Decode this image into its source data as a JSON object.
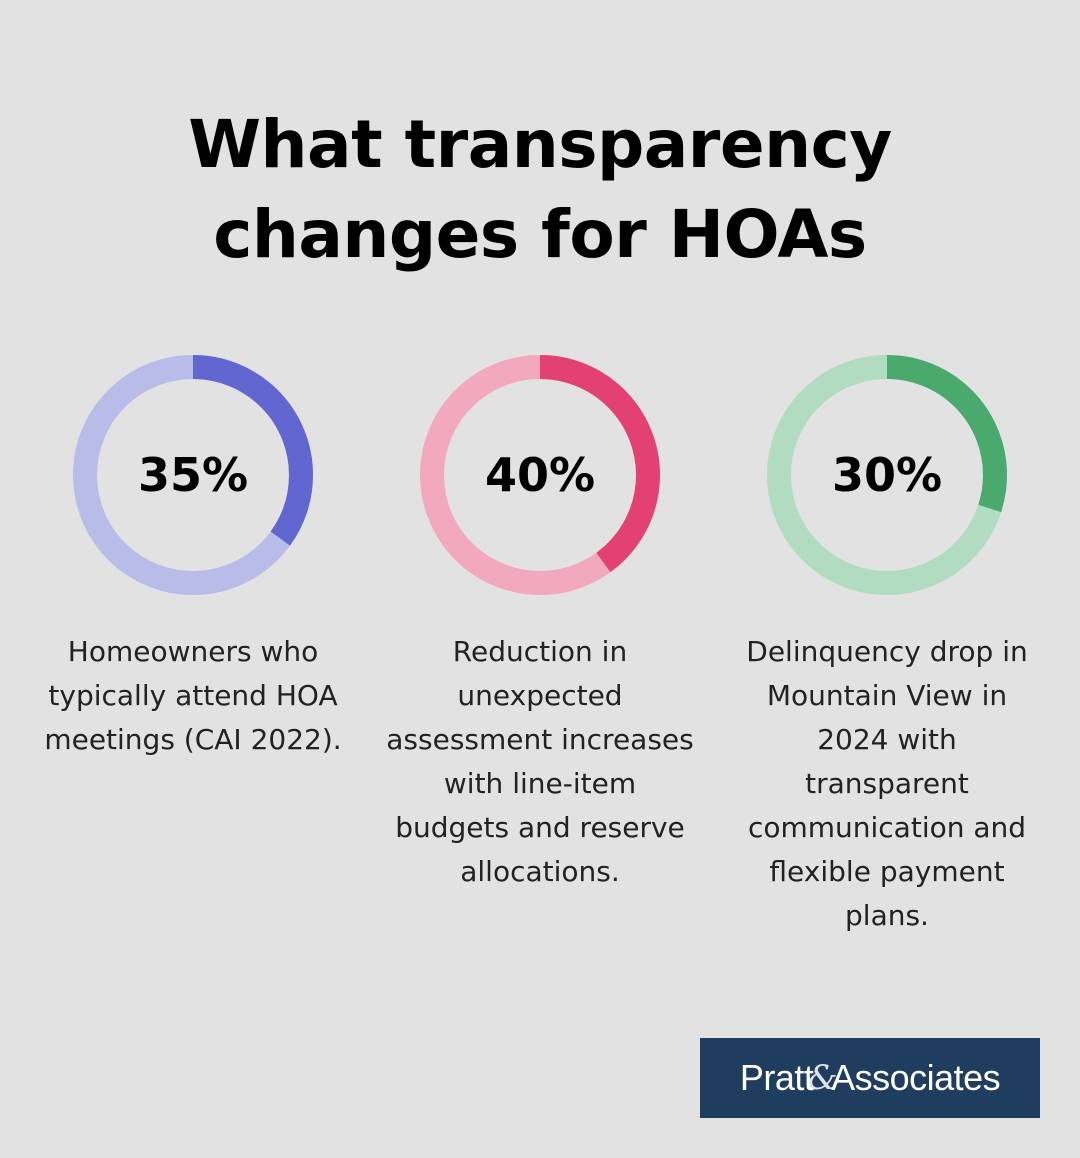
{
  "title_lines": [
    "What transparency",
    "changes for HOAs"
  ],
  "chart_data": {
    "type": "pie",
    "items": [
      {
        "value": 35,
        "label": "35%",
        "description": "Homeowners who typically attend HOA meetings (CAI 2022).",
        "color": "#6166d1",
        "track_color": "#b9bce8"
      },
      {
        "value": 40,
        "label": "40%",
        "description": "Reduction in unexpected assessment increases with line-item budgets and reserve allocations.",
        "color": "#e34173",
        "track_color": "#f2a9bf"
      },
      {
        "value": 30,
        "label": "30%",
        "description": "Delinquency drop in Mountain View in 2024 with transparent communication and flexible payment plans.",
        "color": "#4aa96d",
        "track_color": "#b2dcc1"
      }
    ]
  },
  "logo": {
    "left": "Pratt",
    "amp": "&",
    "right": "Associates"
  }
}
